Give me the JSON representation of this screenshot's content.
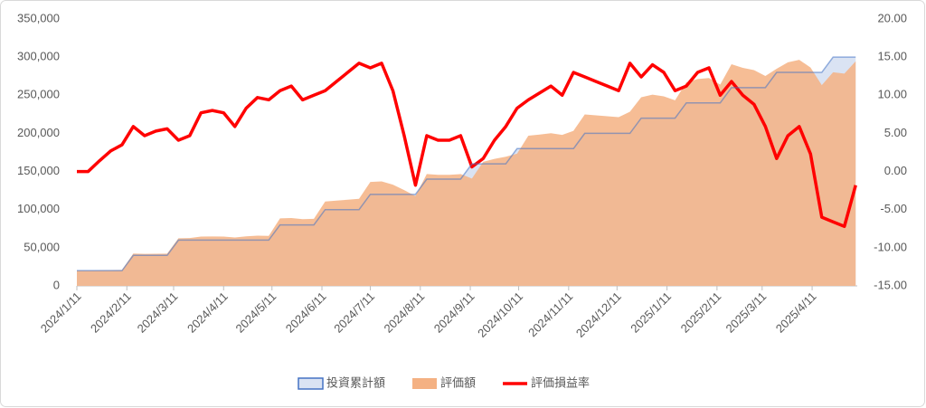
{
  "chart_data": {
    "type": "combo",
    "x": [
      "2024/1/11",
      "2024/1/18",
      "2024/1/25",
      "2024/2/1",
      "2024/2/8",
      "2024/2/15",
      "2024/2/22",
      "2024/2/29",
      "2024/3/7",
      "2024/3/14",
      "2024/3/21",
      "2024/3/28",
      "2024/4/4",
      "2024/4/11",
      "2024/4/18",
      "2024/4/25",
      "2024/5/2",
      "2024/5/9",
      "2024/5/16",
      "2024/5/23",
      "2024/5/30",
      "2024/6/6",
      "2024/6/13",
      "2024/6/20",
      "2024/6/27",
      "2024/7/4",
      "2024/7/11",
      "2024/7/18",
      "2024/7/25",
      "2024/8/1",
      "2024/8/8",
      "2024/8/15",
      "2024/8/22",
      "2024/8/29",
      "2024/9/5",
      "2024/9/12",
      "2024/9/19",
      "2024/9/26",
      "2024/10/3",
      "2024/10/10",
      "2024/10/17",
      "2024/10/24",
      "2024/10/31",
      "2024/11/7",
      "2024/11/14",
      "2024/11/21",
      "2024/11/28",
      "2024/12/5",
      "2024/12/12",
      "2024/12/19",
      "2024/12/26",
      "2025/1/2",
      "2025/1/9",
      "2025/1/16",
      "2025/1/23",
      "2025/1/30",
      "2025/2/6",
      "2025/2/13",
      "2025/2/20",
      "2025/2/27",
      "2025/3/6",
      "2025/3/13",
      "2025/3/20",
      "2025/3/27",
      "2025/4/3",
      "2025/4/10",
      "2025/4/17",
      "2025/4/24",
      "2025/5/1",
      "2025/5/8"
    ],
    "xlim": [
      "2024/1/11",
      "2025/5/9"
    ],
    "xticks": [
      "2024/1/11",
      "2024/2/11",
      "2024/3/11",
      "2024/4/11",
      "2024/5/11",
      "2024/6/11",
      "2024/7/11",
      "2024/8/11",
      "2024/9/11",
      "2024/10/11",
      "2024/11/11",
      "2024/12/11",
      "2025/1/11",
      "2025/2/11",
      "2025/3/11",
      "2025/4/11"
    ],
    "ylim": [
      0,
      350000
    ],
    "yticks": [
      0,
      {
        "value": 50000,
        "label": "50,000"
      },
      {
        "value": 100000,
        "label": "100,000"
      },
      {
        "value": 150000,
        "label": "150,000"
      },
      {
        "value": 200000,
        "label": "200,000"
      },
      {
        "value": 250000,
        "label": "250,000"
      },
      {
        "value": 300000,
        "label": "300,000"
      },
      {
        "value": 350000,
        "label": "350,000"
      }
    ],
    "y2lim": [
      -15,
      20
    ],
    "y2ticks": [
      {
        "value": -15,
        "label": "-15.00"
      },
      {
        "value": -10,
        "label": "-10.00"
      },
      {
        "value": -5,
        "label": "-5.00"
      },
      {
        "value": 0,
        "label": "0.00"
      },
      {
        "value": 5,
        "label": "5.00"
      },
      {
        "value": 10,
        "label": "10.00"
      },
      {
        "value": 15,
        "label": "15.00"
      },
      {
        "value": 20,
        "label": "20.00"
      }
    ],
    "series": [
      {
        "name": "投資累計額",
        "type": "area",
        "color": "#dae3f3",
        "line_color": "#4472c4",
        "values": [
          20000,
          20000,
          20000,
          20000,
          20000,
          40000,
          40000,
          40000,
          40000,
          60000,
          60000,
          60000,
          60000,
          60000,
          60000,
          60000,
          60000,
          60000,
          80000,
          80000,
          80000,
          80000,
          100000,
          100000,
          100000,
          100000,
          120000,
          120000,
          120000,
          120000,
          120000,
          140000,
          140000,
          140000,
          140000,
          160000,
          160000,
          160000,
          160000,
          180000,
          180000,
          180000,
          180000,
          180000,
          180000,
          200000,
          200000,
          200000,
          200000,
          200000,
          220000,
          220000,
          220000,
          220000,
          240000,
          240000,
          240000,
          240000,
          260000,
          260000,
          260000,
          260000,
          280000,
          280000,
          280000,
          280000,
          280000,
          300000,
          300000,
          300000
        ]
      },
      {
        "name": "評価額",
        "type": "area",
        "color": "#f4b183",
        "values": [
          20000,
          20000,
          20300,
          20500,
          20700,
          42400,
          41900,
          42100,
          42200,
          62500,
          62800,
          64600,
          64800,
          64600,
          63500,
          65000,
          65800,
          65600,
          88500,
          89000,
          87500,
          88000,
          110600,
          111800,
          113000,
          114200,
          136300,
          137000,
          132700,
          125600,
          117800,
          146600,
          145700,
          145700,
          146600,
          140800,
          162700,
          166600,
          169400,
          173300,
          196900,
          198500,
          200200,
          198000,
          203400,
          224800,
          223600,
          222400,
          221200,
          228400,
          247300,
          250800,
          248600,
          243300,
          266900,
          271200,
          272600,
          264000,
          290700,
          286000,
          282900,
          275300,
          284800,
          293200,
          296500,
          286400,
          263200,
          280200,
          278400,
          294600
        ]
      },
      {
        "name": "評価損益率",
        "type": "line",
        "axis": "y2",
        "color": "#ff0000",
        "values": [
          0,
          0,
          1.4,
          2.7,
          3.5,
          5.9,
          4.7,
          5.3,
          5.6,
          4.1,
          4.7,
          7.7,
          8.0,
          7.7,
          5.9,
          8.3,
          9.7,
          9.4,
          10.6,
          11.2,
          9.4,
          10.0,
          10.6,
          11.8,
          13.0,
          14.2,
          13.6,
          14.2,
          10.6,
          4.7,
          -1.8,
          4.7,
          4.1,
          4.1,
          4.7,
          0.6,
          1.7,
          4.1,
          5.9,
          8.3,
          9.4,
          10.3,
          11.2,
          10.0,
          13.0,
          12.4,
          11.8,
          11.2,
          10.6,
          14.2,
          12.4,
          14.0,
          13.0,
          10.6,
          11.2,
          13.0,
          13.6,
          10.0,
          11.8,
          10.0,
          8.8,
          5.9,
          1.7,
          4.7,
          5.9,
          2.3,
          -6.0,
          -6.6,
          -7.2,
          -1.8
        ]
      }
    ]
  }
}
